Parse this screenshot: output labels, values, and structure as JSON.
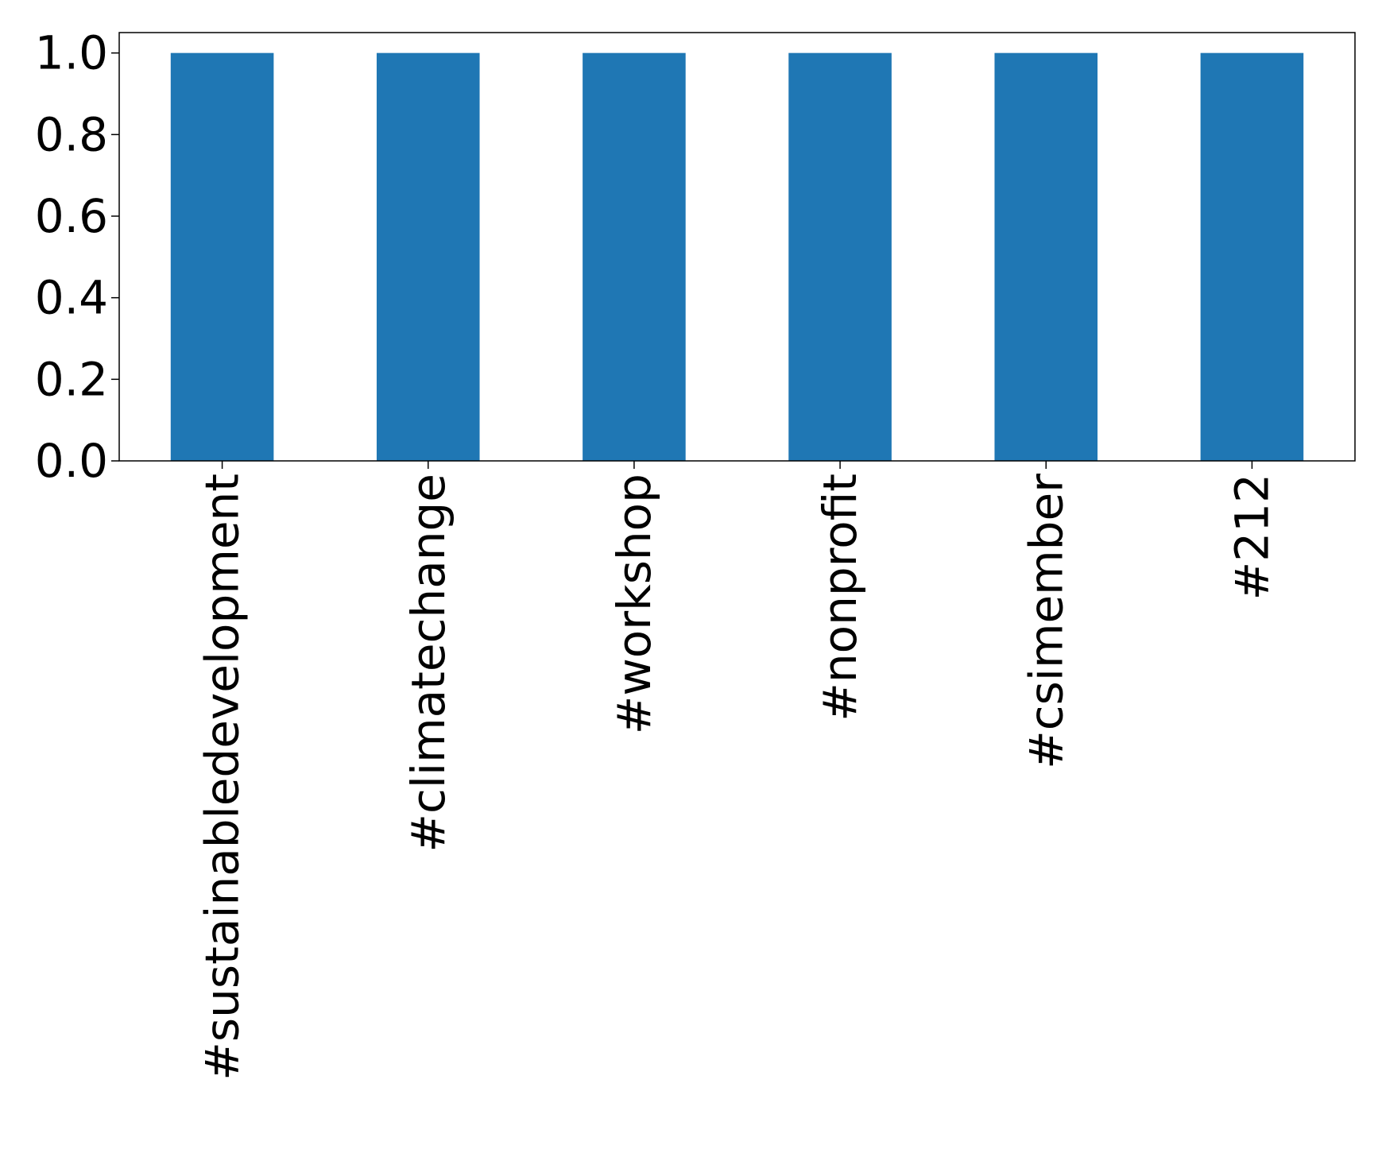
{
  "chart_data": {
    "type": "bar",
    "categories": [
      "#sustainabledevelopment",
      "#climatechange",
      "#workshop",
      "#nonprofit",
      "#csimember",
      "#212"
    ],
    "values": [
      1,
      1,
      1,
      1,
      1,
      1
    ],
    "title": "",
    "xlabel": "",
    "ylabel": "",
    "ylim": [
      0,
      1.05
    ],
    "yticks": [
      "0.0",
      "0.2",
      "0.4",
      "0.6",
      "0.8",
      "1.0"
    ],
    "grid": false,
    "legend": "none",
    "bar_color": "#1f77b4"
  }
}
